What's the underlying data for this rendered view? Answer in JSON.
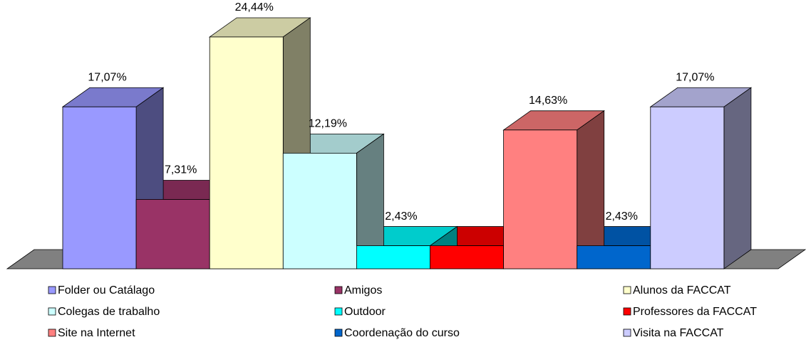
{
  "chart_data": {
    "type": "bar3d",
    "series": [
      {
        "name": "Folder ou Catálago",
        "color": "#9999ff",
        "values": [
          17.07
        ],
        "value_labels": [
          "17,07%"
        ]
      },
      {
        "name": "Amigos",
        "color": "#993366",
        "values": [
          7.31
        ],
        "value_labels": [
          "7,31%"
        ]
      },
      {
        "name": "Alunos da FACCAT",
        "color": "#ffffcc",
        "values": [
          24.44
        ],
        "value_labels": [
          "24,44%"
        ]
      },
      {
        "name": "Colegas de trabalho",
        "color": "#ccffff",
        "values": [
          12.19
        ],
        "value_labels": [
          "12,19%"
        ]
      },
      {
        "name": "Outdoor",
        "color": "#00ffff",
        "values": [
          2.43
        ],
        "value_labels": [
          "2,43%"
        ]
      },
      {
        "name": "Professores da FACCAT",
        "color": "#ff0000",
        "values": [
          2.43
        ],
        "value_labels": [
          null
        ]
      },
      {
        "name": "Site na Internet",
        "color": "#ff8080",
        "values": [
          14.63
        ],
        "value_labels": [
          "14,63%"
        ]
      },
      {
        "name": "Coordenação do curso",
        "color": "#0066cc",
        "values": [
          2.43
        ],
        "value_labels": [
          "2,43%"
        ]
      },
      {
        "name": "Visita na FACCAT",
        "color": "#ccccff",
        "values": [
          17.07
        ],
        "value_labels": [
          "17,07%"
        ]
      }
    ],
    "legend": "bottom"
  }
}
